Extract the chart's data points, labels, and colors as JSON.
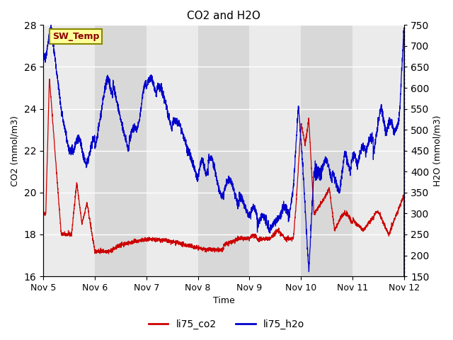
{
  "title": "CO2 and H2O",
  "xlabel": "Time",
  "ylabel_left": "CO2 (mmol/m3)",
  "ylabel_right": "H2O (mmol/m3)",
  "ylim_left": [
    16,
    28
  ],
  "ylim_right": [
    150,
    750
  ],
  "yticks_left": [
    16,
    18,
    20,
    22,
    24,
    26,
    28
  ],
  "yticks_right": [
    150,
    200,
    250,
    300,
    350,
    400,
    450,
    500,
    550,
    600,
    650,
    700,
    750
  ],
  "color_co2": "#cc0000",
  "color_h2o": "#0000cc",
  "annotation_text": "SW_Temp",
  "annotation_color": "#8b0000",
  "annotation_bg": "#ffff99",
  "annotation_border": "#888800",
  "background_color": "#ffffff",
  "plot_bg_light": "#ebebeb",
  "plot_bg_dark": "#d8d8d8",
  "legend_co2": "li75_co2",
  "legend_h2o": "li75_h2o",
  "x_tick_labels": [
    "Nov 5",
    "Nov 6",
    "Nov 7",
    "Nov 8",
    "Nov 9",
    "Nov 10",
    "Nov 11",
    "Nov 12"
  ]
}
